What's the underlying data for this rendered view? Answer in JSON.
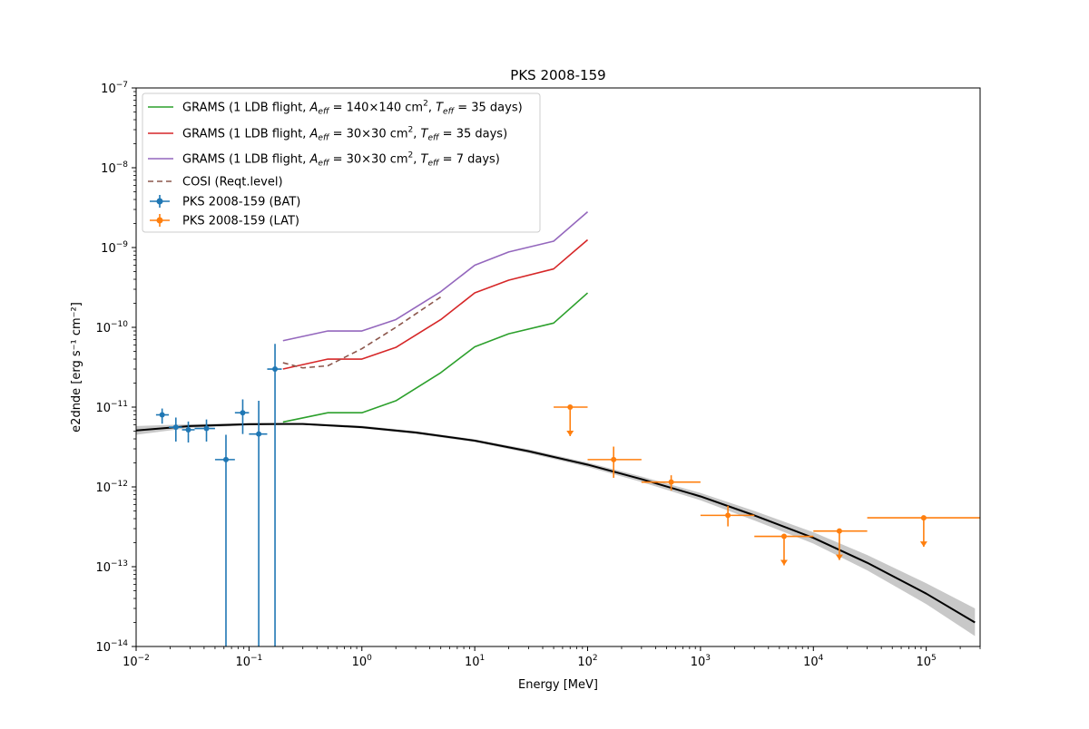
{
  "chart_data": {
    "type": "line",
    "title": "PKS 2008-159",
    "xlabel": "Energy [MeV]",
    "ylabel": "e2dnde [erg s⁻¹ cm⁻²]",
    "xscale": "log",
    "yscale": "log",
    "xlim": [
      0.01,
      300000
    ],
    "ylim": [
      1e-14,
      1e-07
    ],
    "x_ticks": [
      {
        "value": 0.01,
        "base": "10",
        "exp": "−2"
      },
      {
        "value": 0.1,
        "base": "10",
        "exp": "−1"
      },
      {
        "value": 1,
        "base": "10",
        "exp": "0"
      },
      {
        "value": 10,
        "base": "10",
        "exp": "1"
      },
      {
        "value": 100,
        "base": "10",
        "exp": "2"
      },
      {
        "value": 1000,
        "base": "10",
        "exp": "3"
      },
      {
        "value": 10000,
        "base": "10",
        "exp": "4"
      },
      {
        "value": 100000,
        "base": "10",
        "exp": "5"
      }
    ],
    "y_ticks": [
      {
        "value": 1e-14,
        "base": "10",
        "exp": "−14"
      },
      {
        "value": 1e-13,
        "base": "10",
        "exp": "−13"
      },
      {
        "value": 1e-12,
        "base": "10",
        "exp": "−12"
      },
      {
        "value": 1e-11,
        "base": "10",
        "exp": "−11"
      },
      {
        "value": 1e-10,
        "base": "10",
        "exp": "−10"
      },
      {
        "value": 1e-09,
        "base": "10",
        "exp": "−9"
      },
      {
        "value": 1e-08,
        "base": "10",
        "exp": "−8"
      },
      {
        "value": 1e-07,
        "base": "10",
        "exp": "−7"
      }
    ],
    "legend_position": "upper left",
    "series": [
      {
        "name": "GRAMS (1 LDB flight, A_eff = 140×140 cm², T_eff = 35 days)",
        "legend_parts": {
          "prefix": "GRAMS (1 LDB flight, ",
          "aeff": "= 140×140 cm",
          "teff": "= 35 days)"
        },
        "color": "#2ca02c",
        "style": "solid",
        "x": [
          0.2,
          0.5,
          1,
          2,
          5,
          10,
          20,
          50,
          100
        ],
        "y": [
          6.5e-12,
          8.5e-12,
          8.5e-12,
          1.2e-11,
          2.7e-11,
          5.7e-11,
          8.3e-11,
          1.13e-10,
          2.7e-10
        ]
      },
      {
        "name": "GRAMS (1 LDB flight, A_eff = 30×30 cm², T_eff = 35 days)",
        "legend_parts": {
          "prefix": "GRAMS (1 LDB flight, ",
          "aeff": "= 30×30 cm",
          "teff": "= 35 days)"
        },
        "color": "#d62728",
        "style": "solid",
        "x": [
          0.2,
          0.5,
          1,
          2,
          5,
          10,
          20,
          50,
          100
        ],
        "y": [
          3e-11,
          4e-11,
          4e-11,
          5.6e-11,
          1.25e-10,
          2.7e-10,
          3.9e-10,
          5.4e-10,
          1.25e-09
        ]
      },
      {
        "name": "GRAMS (1 LDB flight, A_eff = 30×30 cm², T_eff = 7 days)",
        "legend_parts": {
          "prefix": "GRAMS (1 LDB flight, ",
          "aeff": "= 30×30 cm",
          "teff": "= 7 days)"
        },
        "color": "#9467bd",
        "style": "solid",
        "x": [
          0.2,
          0.5,
          1,
          2,
          5,
          10,
          20,
          50,
          100
        ],
        "y": [
          6.8e-11,
          9e-11,
          9e-11,
          1.25e-10,
          2.8e-10,
          6e-10,
          8.8e-10,
          1.2e-09,
          2.8e-09
        ]
      },
      {
        "name": "COSI (Reqt.level)",
        "color": "#8c564b",
        "style": "dashed",
        "x": [
          0.2,
          0.3,
          0.5,
          1,
          2,
          5
        ],
        "y": [
          3.6e-11,
          3.1e-11,
          3.3e-11,
          5.4e-11,
          1e-10,
          2.4e-10
        ]
      },
      {
        "name": "PKS 2008-159 (BAT)",
        "color": "#1f77b4",
        "style": "errorbar",
        "points": [
          {
            "x": 0.017,
            "y": 8e-12,
            "xerr": [
              0.015,
              0.0195
            ],
            "yerr": [
              6.2e-12,
              9.6e-12
            ]
          },
          {
            "x": 0.0225,
            "y": 5.6e-12,
            "xerr": [
              0.0195,
              0.0255
            ],
            "yerr": [
              3.7e-12,
              7.4e-12
            ]
          },
          {
            "x": 0.029,
            "y": 5.2e-12,
            "xerr": [
              0.0255,
              0.033
            ],
            "yerr": [
              3.6e-12,
              6.6e-12
            ]
          },
          {
            "x": 0.042,
            "y": 5.4e-12,
            "xerr": [
              0.033,
              0.05
            ],
            "yerr": [
              3.7e-12,
              7e-12
            ]
          },
          {
            "x": 0.0625,
            "y": 2.2e-12,
            "xerr": [
              0.05,
              0.075
            ],
            "yerr": [
              1e-14,
              4.5e-12
            ]
          },
          {
            "x": 0.088,
            "y": 8.5e-12,
            "xerr": [
              0.075,
              0.1
            ],
            "yerr": [
              4.6e-12,
              1.25e-11
            ]
          },
          {
            "x": 0.122,
            "y": 4.6e-12,
            "xerr": [
              0.1,
              0.145
            ],
            "yerr": [
              1e-14,
              1.2e-11
            ]
          },
          {
            "x": 0.17,
            "y": 3e-11,
            "xerr": [
              0.145,
              0.195
            ],
            "yerr": [
              1e-14,
              6.2e-11
            ]
          }
        ]
      },
      {
        "name": "PKS 2008-159 (LAT)",
        "color": "#ff7f0e",
        "style": "errorbar",
        "points": [
          {
            "x": 70,
            "y": 1e-11,
            "xerr": [
              50,
              100
            ],
            "upper_limit": true
          },
          {
            "x": 170,
            "y": 2.2e-12,
            "xerr": [
              100,
              300
            ],
            "yerr": [
              1.3e-12,
              3.2e-12
            ]
          },
          {
            "x": 550,
            "y": 1.15e-12,
            "xerr": [
              300,
              1000
            ],
            "yerr": [
              9e-13,
              1.4e-12
            ]
          },
          {
            "x": 1750,
            "y": 4.4e-13,
            "xerr": [
              1000,
              3000
            ],
            "yerr": [
              3.2e-13,
              5.8e-13
            ]
          },
          {
            "x": 5500,
            "y": 2.4e-13,
            "xerr": [
              3000,
              10000
            ],
            "upper_limit": true
          },
          {
            "x": 17000,
            "y": 2.8e-13,
            "xerr": [
              10000,
              30000
            ],
            "upper_limit": true
          },
          {
            "x": 95000,
            "y": 4.1e-13,
            "xerr": [
              30000,
              300000
            ],
            "upper_limit": true
          }
        ]
      },
      {
        "name": "model",
        "color": "#000000",
        "style": "solid",
        "x": [
          0.01,
          0.03,
          0.1,
          0.2,
          0.3,
          1,
          3,
          10,
          30,
          100,
          300,
          1000,
          3000,
          10000,
          30000,
          100000,
          270000
        ],
        "y": [
          5.1e-12,
          5.8e-12,
          6.1e-12,
          6.15e-12,
          6.15e-12,
          5.6e-12,
          4.8e-12,
          3.8e-12,
          2.8e-12,
          1.9e-12,
          1.25e-12,
          7.6e-13,
          4.4e-13,
          2.3e-13,
          1.12e-13,
          4.6e-14,
          2e-14
        ],
        "band_lower": [
          4.5e-12,
          5.5e-12,
          5.9e-12,
          6e-12,
          6e-12,
          5.4e-12,
          4.6e-12,
          3.65e-12,
          2.65e-12,
          1.78e-12,
          1.15e-12,
          6.8e-13,
          3.8e-13,
          1.95e-13,
          9e-14,
          3.4e-14,
          1.35e-14
        ],
        "band_upper": [
          5.8e-12,
          6.1e-12,
          6.35e-12,
          6.35e-12,
          6.35e-12,
          5.85e-12,
          5e-12,
          3.95e-12,
          2.95e-12,
          2.02e-12,
          1.35e-12,
          8.4e-13,
          5e-13,
          2.7e-13,
          1.4e-13,
          6.2e-14,
          3e-14
        ]
      }
    ]
  }
}
